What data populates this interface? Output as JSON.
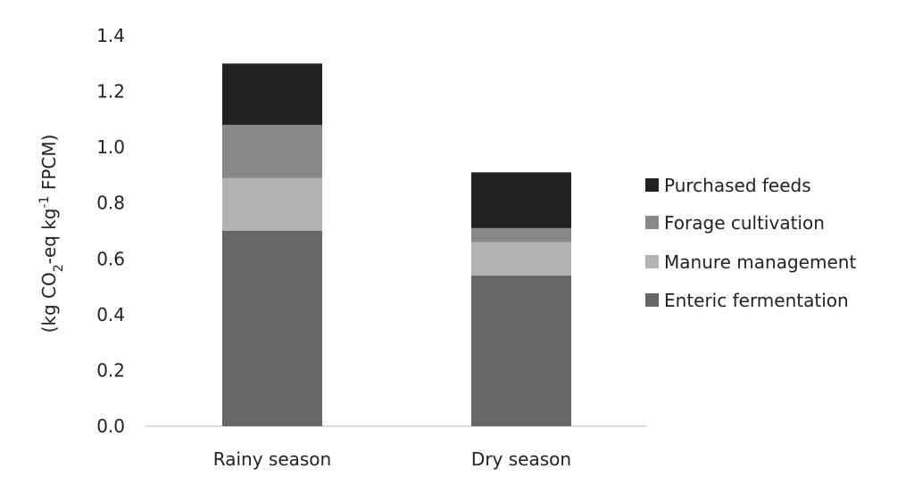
{
  "chart_data": {
    "type": "bar",
    "stacked": true,
    "categories": [
      "Rainy season",
      "Dry season"
    ],
    "series": [
      {
        "name": "Enteric fermentation",
        "values": [
          0.7,
          0.54
        ],
        "color": "#666666"
      },
      {
        "name": "Manure management",
        "values": [
          0.19,
          0.12
        ],
        "color": "#b3b3b3"
      },
      {
        "name": "Forage cultivation",
        "values": [
          0.19,
          0.05
        ],
        "color": "#888888"
      },
      {
        "name": "Purchased feeds",
        "values": [
          0.22,
          0.2
        ],
        "color": "#222222"
      }
    ],
    "yticks": [
      "0.0",
      "0.2",
      "0.4",
      "0.6",
      "0.8",
      "1.0",
      "1.2",
      "1.4"
    ],
    "ylim": [
      0,
      1.4
    ],
    "ylabel": {
      "prefix": "(kg CO",
      "sub1": "2",
      "mid": "-eq kg",
      "sup": "-1",
      "suffix": " FPCM)"
    },
    "legend_order": [
      "Purchased feeds",
      "Forage cultivation",
      "Manure management",
      "Enteric fermentation"
    ],
    "legend_position": "right",
    "grid": false
  }
}
